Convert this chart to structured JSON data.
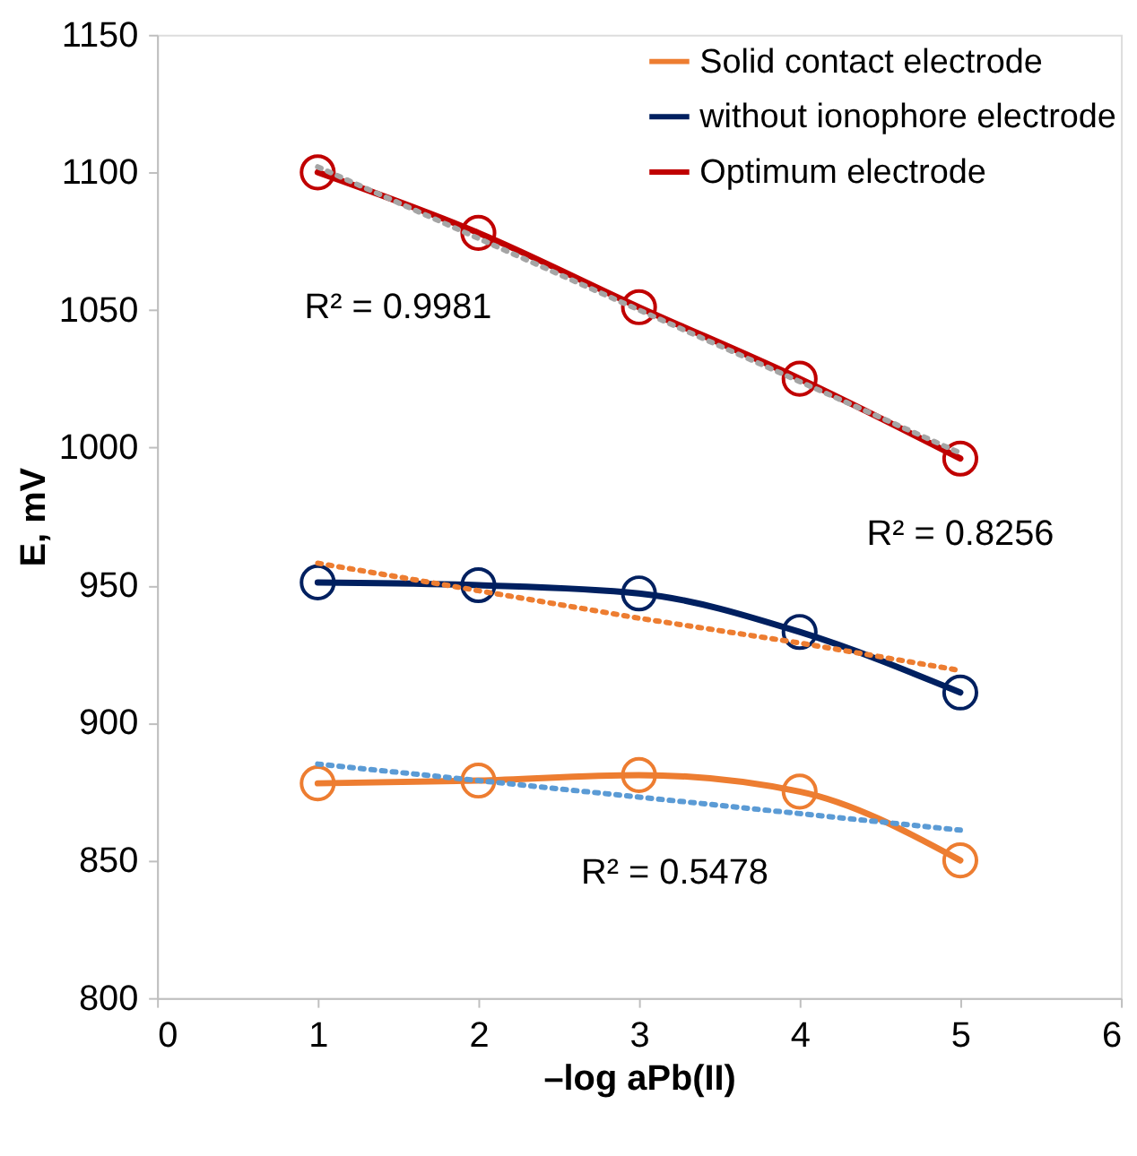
{
  "chart_data": {
    "type": "line",
    "xlabel": "–log aPb(II)",
    "ylabel": "E, mV",
    "x": [
      1,
      2,
      3,
      4,
      5
    ],
    "series": [
      {
        "name": "Solid contact electrode",
        "color": "#ed7d31",
        "values": [
          878,
          879,
          881,
          875,
          850
        ],
        "marker": "circle",
        "line_style": "solid"
      },
      {
        "name": "without ionophore electrode",
        "color": "#002060",
        "values": [
          951,
          950,
          947,
          933,
          911
        ],
        "marker": "circle",
        "line_style": "solid"
      },
      {
        "name": "Optimum electrode",
        "color": "#c00000",
        "values": [
          1100,
          1078,
          1051,
          1025,
          996
        ],
        "marker": "circle",
        "line_style": "solid"
      },
      {
        "color": "#a5a5a5",
        "values": [
          1102,
          1076,
          1050,
          1024,
          998
        ],
        "marker": "none",
        "line_style": "dotted"
      },
      {
        "color": "#ed7d31",
        "values": [
          958,
          948,
          938,
          929,
          919
        ],
        "marker": "none",
        "line_style": "dotted"
      },
      {
        "color": "#5b9bd5",
        "values": [
          885,
          879,
          873,
          867,
          861
        ],
        "marker": "none",
        "line_style": "dotted"
      }
    ],
    "xlim": [
      0,
      6
    ],
    "xticks": [
      0,
      1,
      2,
      3,
      4,
      5,
      6
    ],
    "ylim": [
      800,
      1150
    ],
    "yticks": [
      800,
      850,
      900,
      950,
      1000,
      1050,
      1100,
      1150
    ],
    "grid": false,
    "legend": "top right",
    "annotations": [
      "R² = 0.9981",
      "R² = 0.8256",
      "R² = 0.5478"
    ]
  }
}
